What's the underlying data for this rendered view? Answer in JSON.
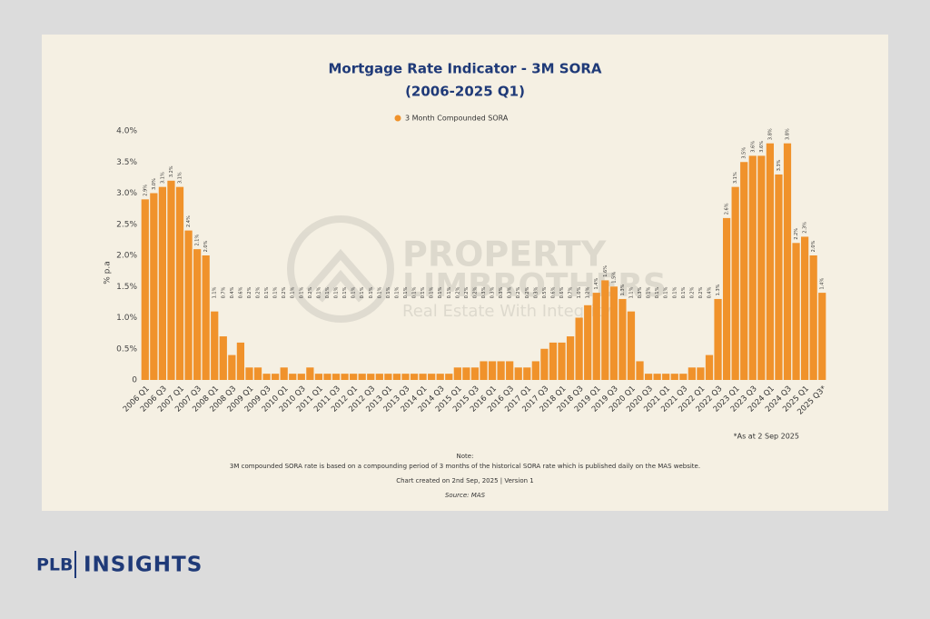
{
  "chart_data": {
    "type": "bar",
    "title": "Mortgage Rate Indicator - 3M SORA",
    "subtitle": "(2006-2025 Q1)",
    "y_label": "% p.a",
    "legend_position": "top",
    "grid": false,
    "series": [
      {
        "name": "3 Month Compounded SORA",
        "color": "#f0922b",
        "values": [
          2.9,
          3.0,
          3.1,
          3.2,
          3.1,
          2.4,
          2.1,
          2.0,
          1.1,
          0.7,
          0.4,
          0.6,
          0.2,
          0.2,
          0.1,
          0.1,
          0.2,
          0.1,
          0.1,
          0.2,
          0.1,
          0.1,
          0.1,
          0.1,
          0.1,
          0.1,
          0.1,
          0.1,
          0.1,
          0.1,
          0.1,
          0.1,
          0.1,
          0.1,
          0.1,
          0.1,
          0.2,
          0.2,
          0.2,
          0.3,
          0.3,
          0.3,
          0.3,
          0.2,
          0.2,
          0.3,
          0.5,
          0.6,
          0.6,
          0.7,
          1.0,
          1.2,
          1.4,
          1.6,
          1.5,
          1.3,
          1.1,
          0.3,
          0.1,
          0.1,
          0.1,
          0.1,
          0.1,
          0.2,
          0.2,
          0.4,
          1.3,
          2.6,
          3.1,
          3.5,
          3.6,
          3.6,
          3.8,
          3.3,
          3.8,
          2.2,
          2.3,
          2.0,
          1.4
        ],
        "value_labels": [
          "2.9%",
          "3.0%",
          "3.1%",
          "3.2%",
          "3.1%",
          "2.4%",
          "2.1%",
          "2.0%",
          "1.1%",
          "0.7%",
          "0.4%",
          "0.6%",
          "0.2%",
          "0.2%",
          "0.1%",
          "0.1%",
          "0.2%",
          "0.1%",
          "0.1%",
          "0.2%",
          "0.1%",
          "0.1%",
          "0.1%",
          "0.1%",
          "0.1%",
          "0.1%",
          "0.1%",
          "0.1%",
          "0.1%",
          "0.1%",
          "0.1%",
          "0.1%",
          "0.1%",
          "0.1%",
          "0.1%",
          "0.1%",
          "0.2%",
          "0.2%",
          "0.2%",
          "0.3%",
          "0.3%",
          "0.3%",
          "0.3%",
          "0.2%",
          "0.2%",
          "0.3%",
          "0.5%",
          "0.6%",
          "0.6%",
          "0.7%",
          "1.0%",
          "1.2%",
          "1.4%",
          "1.6%",
          "1.5%",
          "1.3%",
          "1.1%",
          "0.3%",
          "0.1%",
          "0.1%",
          "0.1%",
          "0.1%",
          "0.1%",
          "0.2%",
          "0.2%",
          "0.4%",
          "1.3%",
          "2.6%",
          "3.1%",
          "3.5%",
          "3.6%",
          "3.6%",
          "3.8%",
          "3.3%",
          "3.8%",
          "2.2%",
          "2.3%",
          "2.0%",
          "1.4%"
        ]
      }
    ],
    "categories": [
      "2006 Q1",
      null,
      "2006 Q3",
      null,
      "2007 Q1",
      null,
      "2007 Q3",
      null,
      "2008 Q1",
      null,
      "2008 Q3",
      null,
      "2009 Q1",
      null,
      "2009 Q3",
      null,
      "2010 Q1",
      null,
      "2010 Q3",
      null,
      "2011 Q1",
      null,
      "2011 Q3",
      null,
      "2012 Q1",
      null,
      "2012 Q3",
      null,
      "2013 Q1",
      null,
      "2013 Q3",
      null,
      "2014 Q1",
      null,
      "2014 Q3",
      null,
      "2015 Q1",
      null,
      "2015 Q3",
      null,
      "2016 Q1",
      null,
      "2016 Q3",
      null,
      "2017 Q1",
      null,
      "2017 Q3",
      null,
      "2018 Q1",
      null,
      "2018 Q3",
      null,
      "2019 Q1",
      null,
      "2019 Q3",
      null,
      "2020 Q1",
      null,
      "2020 Q3",
      null,
      "2021 Q1",
      null,
      "2021 Q3",
      null,
      "2022 Q1",
      null,
      "2022 Q3",
      null,
      "2023 Q1",
      null,
      "2023 Q3",
      null,
      "2024 Q1",
      null,
      "2024 Q3",
      null,
      "2025 Q1",
      null,
      "2025 Q3*"
    ],
    "ylim": [
      0,
      4
    ],
    "yticks": [
      0,
      {
        "value": 0.5,
        "label": "0.5%"
      },
      {
        "value": 1,
        "label": "1.0%"
      },
      {
        "value": 1.5,
        "label": "1.5%"
      },
      {
        "value": 2,
        "label": "2.0%"
      },
      {
        "value": 2.5,
        "label": "2.5%"
      },
      {
        "value": 3,
        "label": "3.0%"
      },
      {
        "value": 3.5,
        "label": "3.5%"
      },
      {
        "value": 4,
        "label": "4.0%"
      }
    ],
    "annotations": {
      "as_at": "*As at 2 Sep 2025",
      "note_title": "Note:",
      "note": "3M compounded SORA rate is based on a compounding period of 3 months of the historical SORA rate which is published daily on the MAS website.",
      "created": "Chart created on 2nd Sep, 2025 | Version 1",
      "source": "Source: MAS"
    },
    "watermark": {
      "name_1": "PROPERTY",
      "name_2": "LIMBROTHERS",
      "tagline": "Real Estate With Integrity"
    }
  },
  "footer": {
    "brand": "PLB",
    "section": "INSIGHTS"
  }
}
